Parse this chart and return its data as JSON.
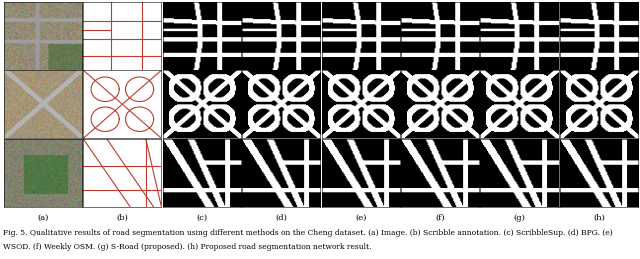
{
  "col_labels": [
    "(a)",
    "(b)",
    "(c)",
    "(d)",
    "(e)",
    "(f)",
    "(g)",
    "(h)"
  ],
  "caption_line1": "Fig. 5. Qualitative results of road segmentation using different methods on the Cheng dataset. (a) Image. (b) Scribble annotation. (c) ScribbleSup. (d) BPG. (e)",
  "caption_line2": "WSOD. (f) Weekly OSM. (g) S-Road (proposed). (h) Proposed road segmentation network result.",
  "n_rows": 3,
  "n_cols": 8,
  "fig_width": 6.4,
  "fig_height": 2.59,
  "label_fontsize": 6.0,
  "caption_fontsize": 5.5,
  "background": "#ffffff"
}
